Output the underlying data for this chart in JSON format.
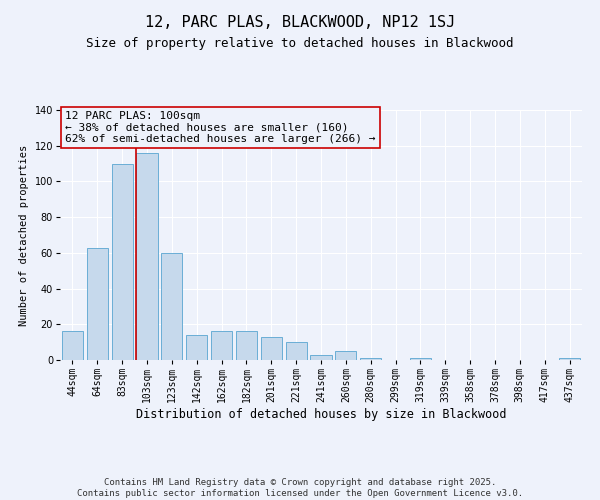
{
  "title": "12, PARC PLAS, BLACKWOOD, NP12 1SJ",
  "subtitle": "Size of property relative to detached houses in Blackwood",
  "xlabel": "Distribution of detached houses by size in Blackwood",
  "ylabel": "Number of detached properties",
  "categories": [
    "44sqm",
    "64sqm",
    "83sqm",
    "103sqm",
    "123sqm",
    "142sqm",
    "162sqm",
    "182sqm",
    "201sqm",
    "221sqm",
    "241sqm",
    "260sqm",
    "280sqm",
    "299sqm",
    "319sqm",
    "339sqm",
    "358sqm",
    "378sqm",
    "398sqm",
    "417sqm",
    "437sqm"
  ],
  "values": [
    16,
    63,
    110,
    116,
    60,
    14,
    16,
    16,
    13,
    10,
    3,
    5,
    1,
    0,
    1,
    0,
    0,
    0,
    0,
    0,
    1
  ],
  "bar_color": "#c6d9ec",
  "bar_edgecolor": "#6aaed6",
  "highlight_line_color": "#cc0000",
  "annotation_line1": "12 PARC PLAS: 100sqm",
  "annotation_line2": "← 38% of detached houses are smaller (160)",
  "annotation_line3": "62% of semi-detached houses are larger (266) →",
  "ylim": [
    0,
    140
  ],
  "yticks": [
    0,
    20,
    40,
    60,
    80,
    100,
    120,
    140
  ],
  "footer_line1": "Contains HM Land Registry data © Crown copyright and database right 2025.",
  "footer_line2": "Contains public sector information licensed under the Open Government Licence v3.0.",
  "background_color": "#eef2fb",
  "title_fontsize": 11,
  "subtitle_fontsize": 9,
  "xlabel_fontsize": 8.5,
  "ylabel_fontsize": 7.5,
  "tick_fontsize": 7,
  "annotation_fontsize": 8,
  "footer_fontsize": 6.5
}
